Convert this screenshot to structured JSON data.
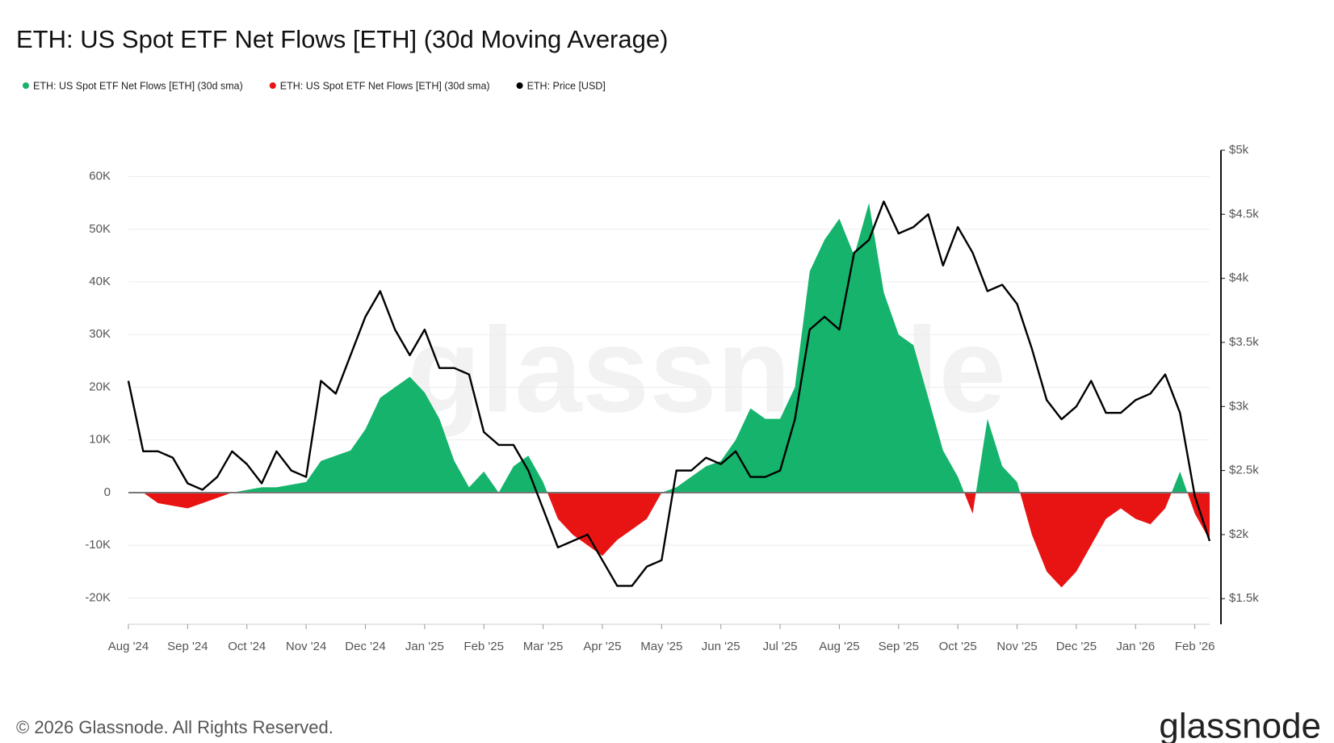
{
  "chart_data": {
    "type": "area-line",
    "title": "ETH: US Spot ETF Net Flows [ETH] (30d Moving Average)",
    "watermark": "glassnode",
    "footer": "© 2026 Glassnode. All Rights Reserved.",
    "logo": "glassnode",
    "categories": [
      "Aug '24",
      null,
      null,
      null,
      "Sep '24",
      null,
      null,
      null,
      "Oct '24",
      null,
      null,
      null,
      "Nov '24",
      null,
      null,
      null,
      "Dec '24",
      null,
      null,
      null,
      "Jan '25",
      null,
      null,
      null,
      "Feb '25",
      null,
      null,
      null,
      "Mar '25",
      null,
      null,
      null,
      "Apr '25",
      null,
      null,
      null,
      "May '25",
      null,
      null,
      null,
      "Jun '25",
      null,
      null,
      null,
      "Jul '25",
      null,
      null,
      null,
      "Aug '25",
      null,
      null,
      null,
      "Sep '25",
      null,
      null,
      null,
      "Oct '25",
      null,
      null,
      null,
      "Nov '25",
      null,
      null,
      null,
      "Dec '25",
      null,
      null,
      null,
      "Jan '26",
      null,
      null,
      null,
      "Feb '26",
      null
    ],
    "series": [
      {
        "name": "ETH: US Spot ETF Net Flows [ETH] (30d sma)",
        "color": "#15b36b",
        "negative_color": "#e81414",
        "values": [
          0,
          0,
          -2000,
          -2500,
          -3000,
          -2000,
          -1000,
          0,
          500,
          1000,
          1000,
          1500,
          2000,
          6000,
          7000,
          8000,
          12000,
          18000,
          20000,
          22000,
          19000,
          14000,
          6000,
          1000,
          4000,
          0,
          5000,
          7000,
          2000,
          -5000,
          -8000,
          -10000,
          -12000,
          -9000,
          -7000,
          -5000,
          0,
          1000,
          3000,
          5000,
          6000,
          10000,
          16000,
          14000,
          14000,
          20000,
          42000,
          48000,
          52000,
          45000,
          55000,
          38000,
          30000,
          28000,
          18000,
          8000,
          3000,
          -4000,
          14000,
          5000,
          2000,
          -8000,
          -15000,
          -18000,
          -15000,
          -10000,
          -5000,
          -3000,
          -5000,
          -6000,
          -3000,
          4000,
          -4000,
          -9000
        ]
      },
      {
        "name": "ETH: Price [USD]",
        "color": "#000000",
        "axis": "y2",
        "values": [
          3200,
          2650,
          2650,
          2600,
          2400,
          2350,
          2450,
          2650,
          2550,
          2400,
          2650,
          2500,
          2450,
          3200,
          3100,
          3400,
          3700,
          3900,
          3600,
          3400,
          3600,
          3300,
          3300,
          3250,
          2800,
          2700,
          2700,
          2500,
          2200,
          1900,
          1950,
          2000,
          1800,
          1600,
          1600,
          1750,
          1800,
          2500,
          2500,
          2600,
          2550,
          2650,
          2450,
          2450,
          2500,
          2900,
          3600,
          3700,
          3600,
          4200,
          4300,
          4600,
          4350,
          4400,
          4500,
          4100,
          4400,
          4200,
          3900,
          3950,
          3800,
          3450,
          3050,
          2900,
          3000,
          3200,
          2950,
          2950,
          3050,
          3100,
          3250,
          2950,
          2300,
          1950
        ]
      }
    ],
    "ylim": [
      -25000,
      65000
    ],
    "yticks": [
      {
        "value": -20000,
        "label": "-20K"
      },
      {
        "value": -10000,
        "label": "-10K"
      },
      0,
      {
        "value": 10000,
        "label": "10K"
      },
      {
        "value": 20000,
        "label": "20K"
      },
      {
        "value": 30000,
        "label": "30K"
      },
      {
        "value": 40000,
        "label": "40K"
      },
      {
        "value": 50000,
        "label": "50K"
      },
      {
        "value": 60000,
        "label": "60K"
      }
    ],
    "y2lim": [
      1300,
      5000
    ],
    "y2ticks": [
      {
        "value": 1500,
        "label": "$1.5k"
      },
      {
        "value": 2000,
        "label": "$2k"
      },
      {
        "value": 2500,
        "label": "$2.5k"
      },
      {
        "value": 3000,
        "label": "$3k"
      },
      {
        "value": 3500,
        "label": "$3.5k"
      },
      {
        "value": 4000,
        "label": "$4k"
      },
      {
        "value": 4500,
        "label": "$4.5k"
      },
      {
        "value": 5000,
        "label": "$5k"
      }
    ],
    "grid": true
  }
}
